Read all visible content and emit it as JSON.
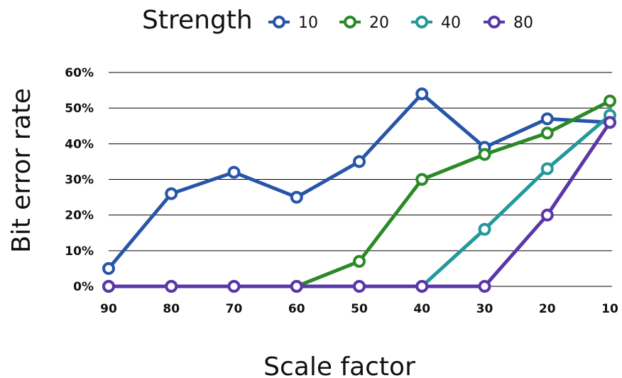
{
  "chart_data": {
    "type": "line",
    "title": "",
    "legend_title": "Strength",
    "legend_position": "top",
    "xlabel": "Scale factor",
    "ylabel": "Bit error rate",
    "categories": [
      "90",
      "80",
      "70",
      "60",
      "50",
      "40",
      "30",
      "20",
      "10"
    ],
    "ylim": [
      0,
      60
    ],
    "y_ticks": [
      "0%",
      "10%",
      "20%",
      "30%",
      "40%",
      "50%",
      "60%"
    ],
    "grid": true,
    "series": [
      {
        "name": "10",
        "color": "#2755a8",
        "values": [
          5,
          26,
          32,
          25,
          35,
          54,
          39,
          47,
          46
        ]
      },
      {
        "name": "20",
        "color": "#2a8a27",
        "values": [
          0,
          0,
          0,
          0,
          7,
          30,
          37,
          43,
          52
        ]
      },
      {
        "name": "40",
        "color": "#24989b",
        "values": [
          0,
          0,
          0,
          0,
          0,
          0,
          16,
          33,
          48
        ]
      },
      {
        "name": "80",
        "color": "#5a36a8",
        "values": [
          0,
          0,
          0,
          0,
          0,
          0,
          0,
          20,
          46
        ]
      }
    ]
  }
}
